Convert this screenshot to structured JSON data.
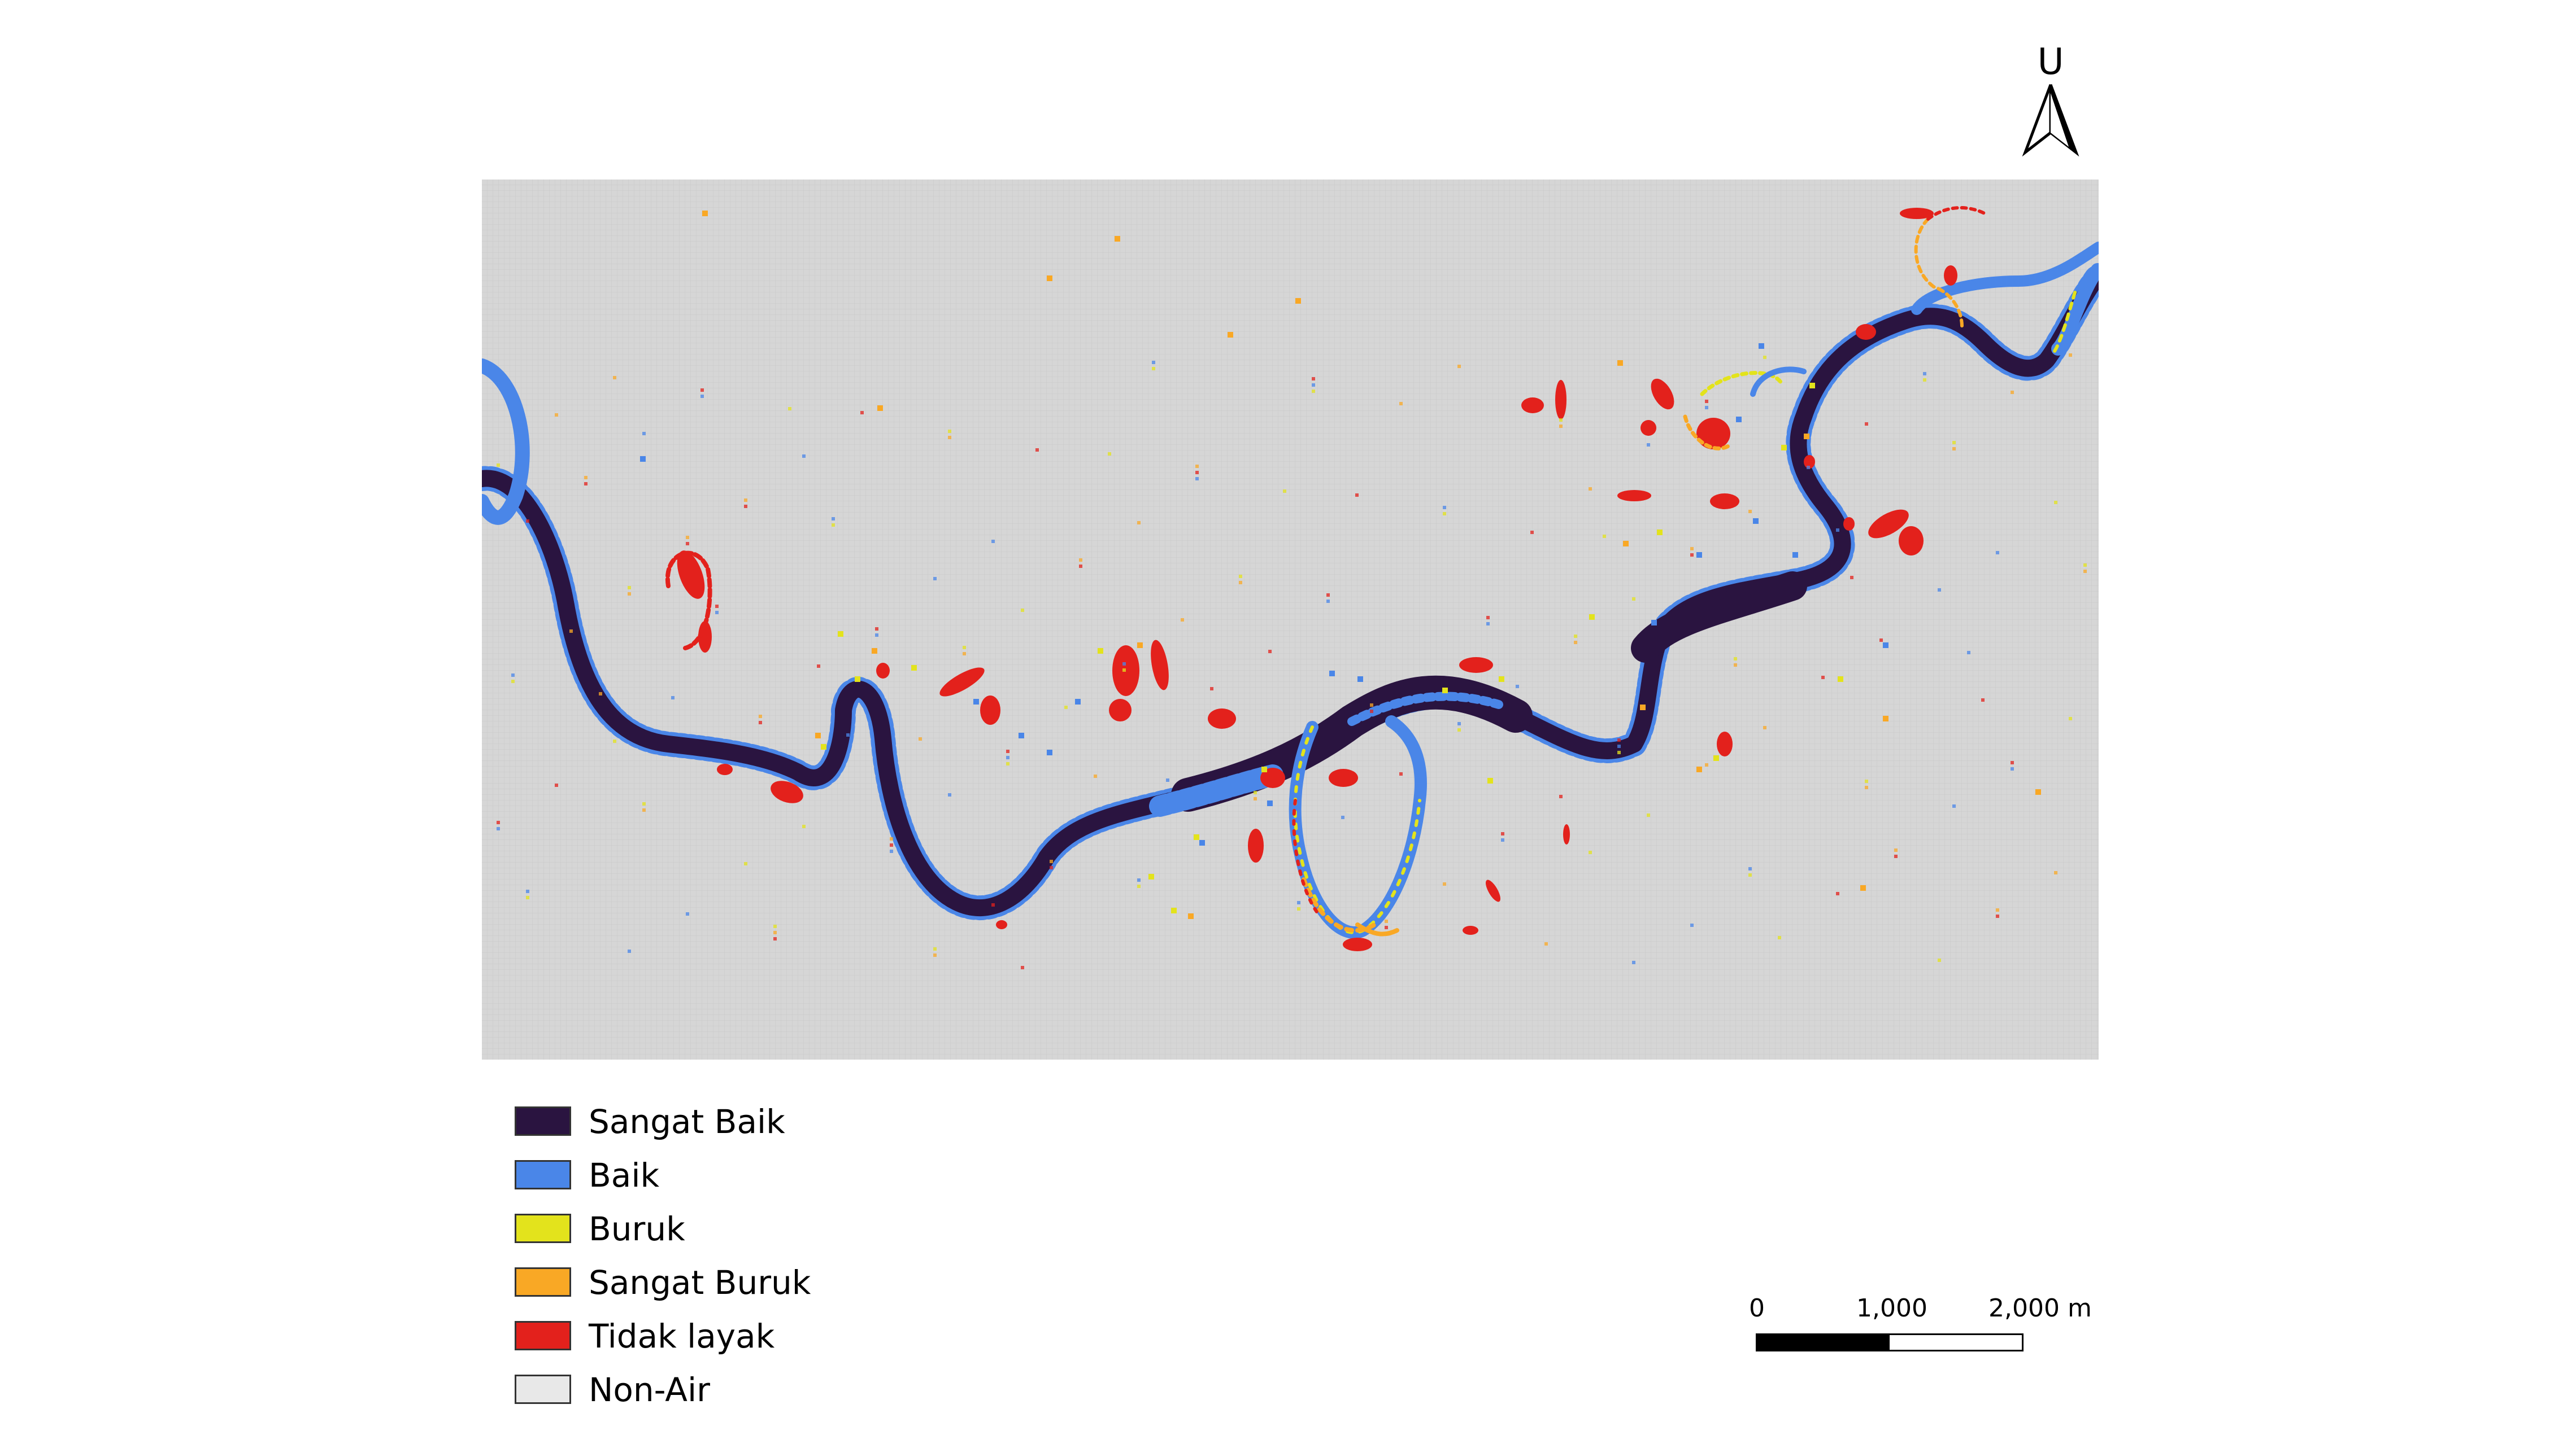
{
  "north_arrow": {
    "letter": "U",
    "icon": "north-arrow-icon"
  },
  "map": {
    "background_color": "#d4d4d4",
    "river_color": "#2a1440",
    "classes_present": [
      "Sangat Baik",
      "Baik",
      "Buruk",
      "Sangat Buruk",
      "Tidak layak",
      "Non-Air"
    ]
  },
  "legend": {
    "items": [
      {
        "label": "Sangat Baik",
        "color": "#2a1440"
      },
      {
        "label": "Baik",
        "color": "#4a86e8"
      },
      {
        "label": "Buruk",
        "color": "#e3e31c"
      },
      {
        "label": "Sangat Buruk",
        "color": "#f9a825"
      },
      {
        "label": "Tidak layak",
        "color": "#e3211c"
      },
      {
        "label": "Non-Air",
        "color": "#e8e8e8"
      }
    ]
  },
  "scale_bar": {
    "labels": [
      "0",
      "1,000",
      "2,000 m"
    ]
  }
}
